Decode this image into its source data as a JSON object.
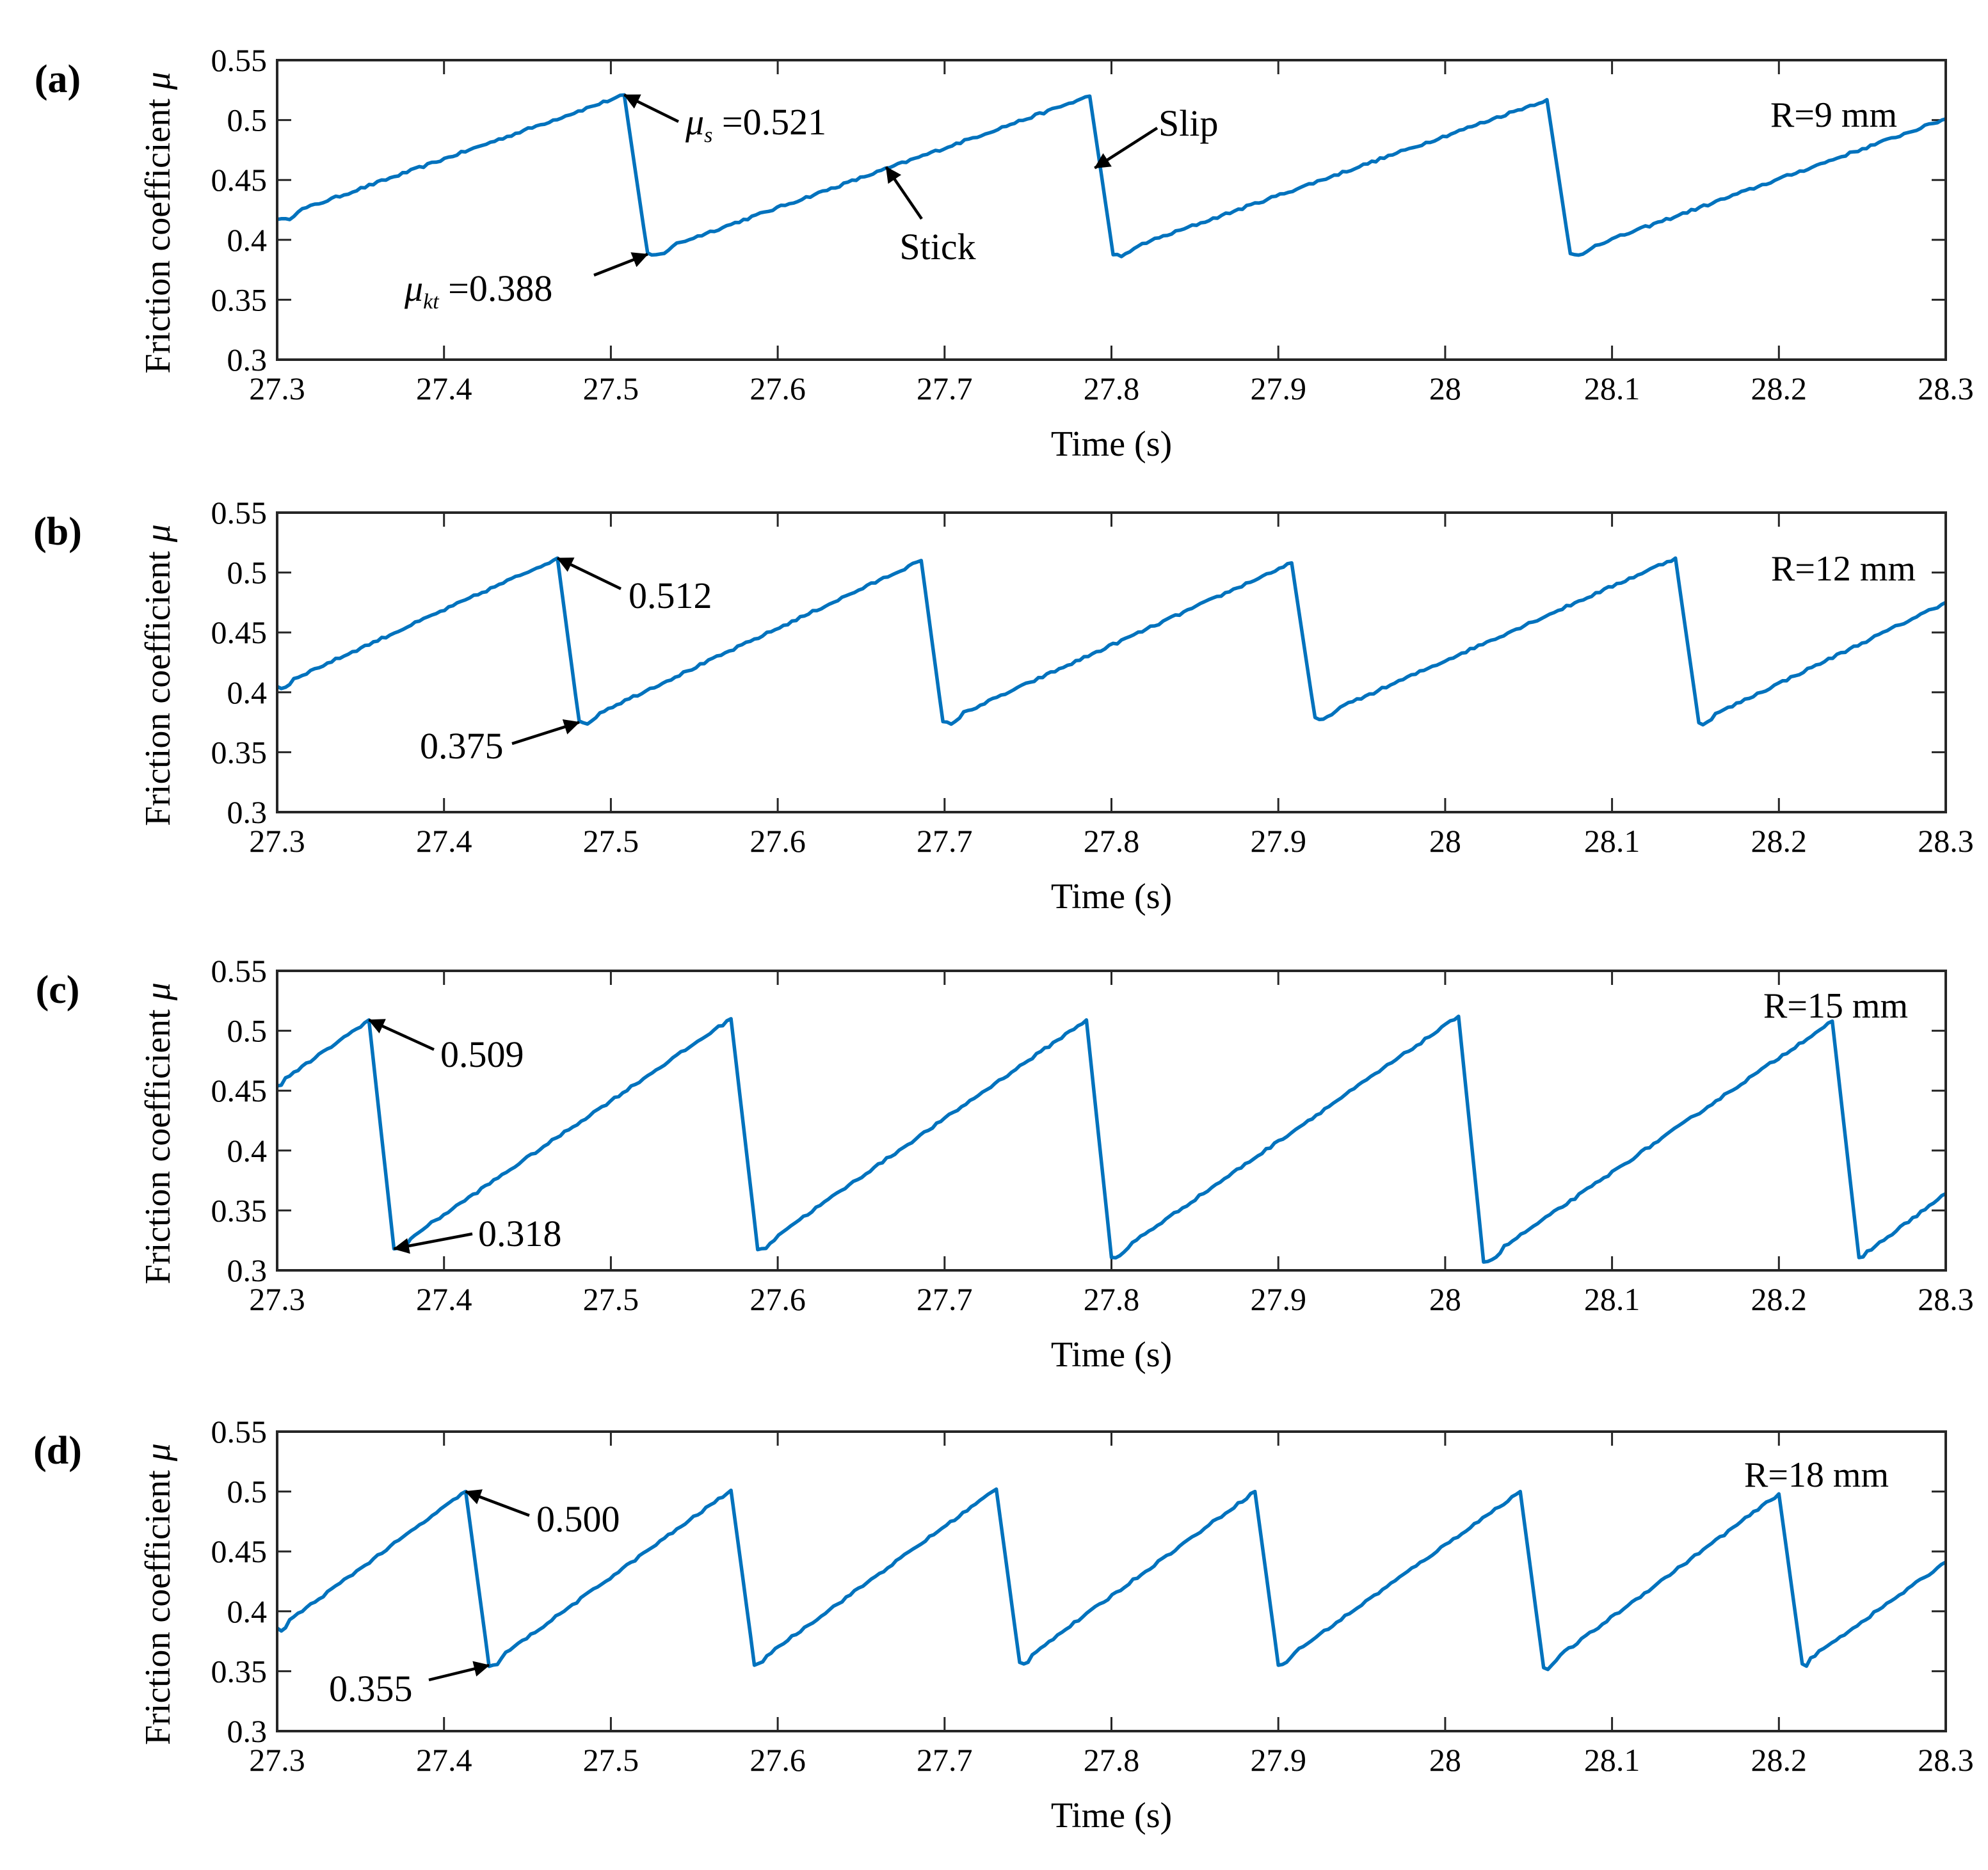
{
  "chart_data": [
    {
      "panel_label": "(a)",
      "type": "line",
      "ylabel": "Friction coefficient",
      "ylabel_symbol": "μ",
      "xlabel": "Time (s)",
      "xlim": [
        27.3,
        28.3
      ],
      "ylim": [
        0.3,
        0.55
      ],
      "x_ticks": [
        "27.3",
        "27.4",
        "27.5",
        "27.6",
        "27.7",
        "27.8",
        "27.9",
        "28",
        "28.1",
        "28.2",
        "28.3"
      ],
      "y_ticks": [
        "0.3",
        "0.35",
        "0.4",
        "0.45",
        "0.5",
        "0.55"
      ],
      "series_color": "#0072BD",
      "radius_label": "R=9 mm",
      "series": {
        "name": "R=9 mm",
        "x": [
          27.3,
          27.508,
          27.522,
          27.787,
          27.801,
          28.061,
          28.075,
          28.3
        ],
        "y": [
          0.418,
          0.521,
          0.388,
          0.52,
          0.388,
          0.517,
          0.388,
          0.501
        ]
      },
      "annotations": [
        {
          "symbol": "μ",
          "sub": "s",
          "text": " =0.521",
          "x": 27.508,
          "y": 0.521
        },
        {
          "symbol": "μ",
          "sub": "kt",
          "text": " =0.388",
          "x": 27.522,
          "y": 0.388
        },
        {
          "text": "Stick",
          "x": 27.665,
          "y": 0.463
        },
        {
          "text": "Slip",
          "x": 27.79,
          "y": 0.46
        }
      ]
    },
    {
      "panel_label": "(b)",
      "type": "line",
      "ylabel": "Friction coefficient",
      "ylabel_symbol": "μ",
      "xlabel": "Time (s)",
      "xlim": [
        27.3,
        28.3
      ],
      "ylim": [
        0.3,
        0.55
      ],
      "x_ticks": [
        "27.3",
        "27.4",
        "27.5",
        "27.6",
        "27.7",
        "27.8",
        "27.9",
        "28",
        "28.1",
        "28.2",
        "28.3"
      ],
      "y_ticks": [
        "0.3",
        "0.35",
        "0.4",
        "0.45",
        "0.5",
        "0.55"
      ],
      "series_color": "#0072BD",
      "radius_label": "R=12 mm",
      "series": {
        "name": "R=12 mm",
        "x": [
          27.3,
          27.468,
          27.481,
          27.686,
          27.699,
          27.908,
          27.922,
          28.138,
          28.152,
          28.3
        ],
        "y": [
          0.405,
          0.512,
          0.375,
          0.51,
          0.375,
          0.508,
          0.378,
          0.512,
          0.375,
          0.475
        ]
      },
      "annotations": [
        {
          "text": "0.512",
          "x": 27.468,
          "y": 0.512
        },
        {
          "text": "0.375",
          "x": 27.481,
          "y": 0.375
        }
      ]
    },
    {
      "panel_label": "(c)",
      "type": "line",
      "ylabel": "Friction coefficient",
      "ylabel_symbol": "μ",
      "xlabel": "Time (s)",
      "xlim": [
        27.3,
        28.3
      ],
      "ylim": [
        0.3,
        0.55
      ],
      "x_ticks": [
        "27.3",
        "27.4",
        "27.5",
        "27.6",
        "27.7",
        "27.8",
        "27.9",
        "28",
        "28.1",
        "28.2",
        "28.3"
      ],
      "y_ticks": [
        "0.3",
        "0.35",
        "0.4",
        "0.45",
        "0.5",
        "0.55"
      ],
      "series_color": "#0072BD",
      "radius_label": "R=15 mm",
      "series": {
        "name": "R=15 mm",
        "x": [
          27.3,
          27.355,
          27.37,
          27.572,
          27.588,
          27.785,
          27.8,
          28.008,
          28.023,
          28.232,
          28.248,
          28.3
        ],
        "y": [
          0.455,
          0.509,
          0.318,
          0.51,
          0.318,
          0.509,
          0.311,
          0.512,
          0.308,
          0.508,
          0.31,
          0.364
        ]
      },
      "annotations": [
        {
          "text": "0.509",
          "x": 27.355,
          "y": 0.509
        },
        {
          "text": "0.318",
          "x": 27.37,
          "y": 0.318
        }
      ]
    },
    {
      "panel_label": "(d)",
      "type": "line",
      "ylabel": "Friction coefficient",
      "ylabel_symbol": "μ",
      "xlabel": "Time (s)",
      "xlim": [
        27.3,
        28.3
      ],
      "ylim": [
        0.3,
        0.55
      ],
      "x_ticks": [
        "27.3",
        "27.4",
        "27.5",
        "27.6",
        "27.7",
        "27.8",
        "27.9",
        "28",
        "28.1",
        "28.2",
        "28.3"
      ],
      "y_ticks": [
        "0.3",
        "0.35",
        "0.4",
        "0.45",
        "0.5",
        "0.55"
      ],
      "series_color": "#0072BD",
      "radius_label": "R=18 mm",
      "series": {
        "name": "R=18 mm",
        "x": [
          27.3,
          27.413,
          27.427,
          27.572,
          27.586,
          27.731,
          27.745,
          27.886,
          27.9,
          28.045,
          28.059,
          28.2,
          28.214,
          28.3
        ],
        "y": [
          0.385,
          0.5,
          0.355,
          0.501,
          0.356,
          0.502,
          0.357,
          0.5,
          0.356,
          0.5,
          0.353,
          0.498,
          0.356,
          0.441
        ]
      },
      "annotations": [
        {
          "text": "0.500",
          "x": 27.413,
          "y": 0.5
        },
        {
          "text": "0.355",
          "x": 27.427,
          "y": 0.355
        }
      ]
    }
  ]
}
